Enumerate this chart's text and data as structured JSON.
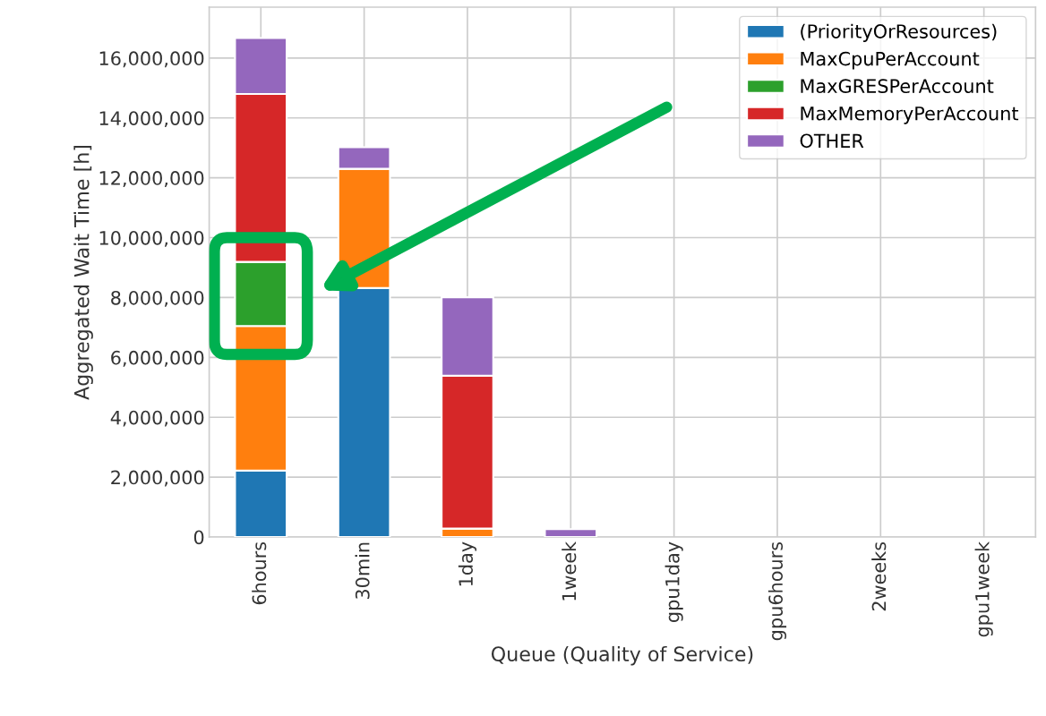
{
  "chart_data": {
    "type": "bar",
    "stacked": true,
    "xlabel": "Queue (Quality of Service)",
    "ylabel": "Aggregated Wait Time [h]",
    "categories": [
      "6hours",
      "30min",
      "1day",
      "1week",
      "gpu1day",
      "gpu6hours",
      "2weeks",
      "gpu1week"
    ],
    "series": [
      {
        "name": "(PriorityOrResources)",
        "color": "#1f77b4",
        "values": [
          2220000,
          8320000,
          0,
          0,
          0,
          0,
          0,
          0
        ]
      },
      {
        "name": "MaxCpuPerAccount",
        "color": "#ff7f0e",
        "values": [
          4830000,
          3980000,
          280000,
          0,
          0,
          0,
          0,
          0
        ]
      },
      {
        "name": "MaxGRESPerAccount",
        "color": "#2ca02c",
        "values": [
          2140000,
          0,
          0,
          0,
          0,
          0,
          0,
          0
        ]
      },
      {
        "name": "MaxMemoryPerAccount",
        "color": "#d62728",
        "values": [
          5610000,
          0,
          5110000,
          0,
          0,
          0,
          0,
          0
        ]
      },
      {
        "name": "OTHER",
        "color": "#9467bd",
        "values": [
          1870000,
          720000,
          2620000,
          260000,
          0,
          0,
          0,
          0
        ]
      }
    ],
    "ylim": [
      0,
      17700000
    ],
    "yticks": [
      0,
      {
        "value": 2000000,
        "label": "2,000,000"
      },
      {
        "value": 4000000,
        "label": "4,000,000"
      },
      {
        "value": 6000000,
        "label": "6,000,000"
      },
      {
        "value": 8000000,
        "label": "8,000,000"
      },
      {
        "value": 10000000,
        "label": "10,000,000"
      },
      {
        "value": 12000000,
        "label": "12,000,000"
      },
      {
        "value": 14000000,
        "label": "14,000,000"
      },
      {
        "value": 16000000,
        "label": "16,000,000"
      }
    ],
    "grid": true,
    "legend": "top right"
  }
}
